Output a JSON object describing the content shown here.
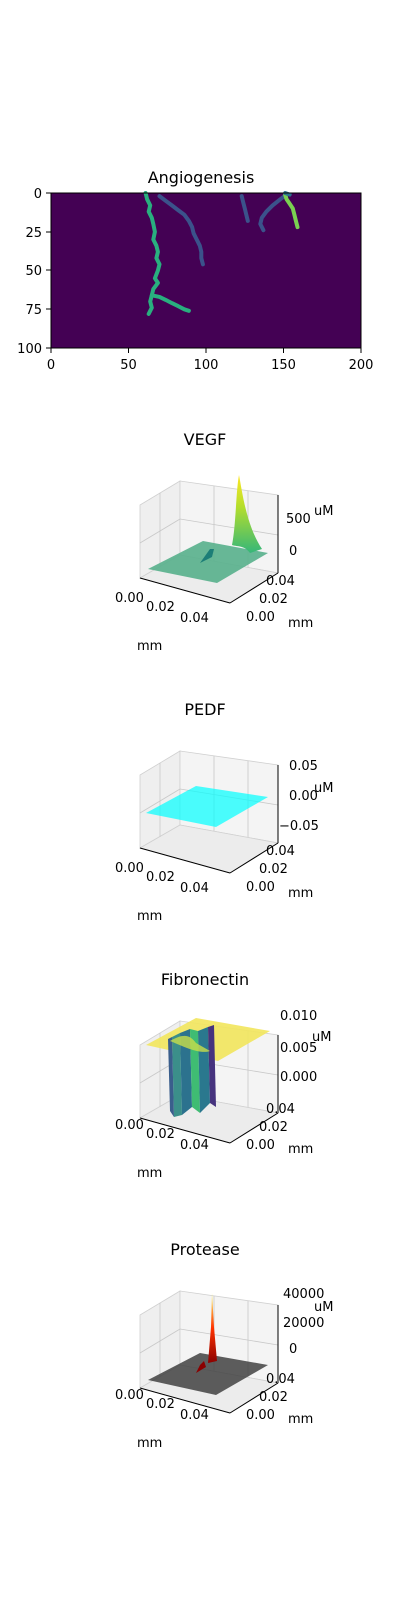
{
  "chart_data": [
    {
      "type": "heatmap",
      "title": "Angiogenesis",
      "xlim": [
        0,
        200
      ],
      "ylim": [
        100,
        0
      ],
      "x_ticks": [
        "0",
        "50",
        "100",
        "150",
        "200"
      ],
      "y_ticks": [
        "0",
        "25",
        "50",
        "75",
        "100"
      ],
      "background_color": "#440154",
      "branches": [
        {
          "color": "#29af7f",
          "points": [
            [
              61,
              0
            ],
            [
              62,
              4
            ],
            [
              64,
              8
            ],
            [
              63,
              12
            ],
            [
              65,
              16
            ],
            [
              66,
              20
            ],
            [
              67,
              25
            ],
            [
              66,
              30
            ],
            [
              68,
              34
            ],
            [
              69,
              38
            ],
            [
              68,
              42
            ],
            [
              70,
              46
            ],
            [
              69,
              50
            ],
            [
              67,
              55
            ],
            [
              69,
              58
            ],
            [
              66,
              62
            ],
            [
              65,
              66
            ],
            [
              64,
              70
            ],
            [
              65,
              74
            ],
            [
              63,
              78
            ]
          ]
        },
        {
          "color": "#29af7f",
          "points": [
            [
              65,
              66
            ],
            [
              70,
              67
            ],
            [
              74,
              69
            ],
            [
              78,
              71
            ],
            [
              82,
              73
            ],
            [
              86,
              75
            ],
            [
              89,
              76
            ]
          ]
        },
        {
          "color": "#3b528b",
          "points": [
            [
              70,
              2
            ],
            [
              74,
              5
            ],
            [
              78,
              8
            ],
            [
              82,
              11
            ],
            [
              86,
              14
            ],
            [
              89,
              18
            ],
            [
              91,
              22
            ],
            [
              92,
              26
            ],
            [
              94,
              30
            ],
            [
              96,
              34
            ],
            [
              97,
              38
            ],
            [
              97,
              42
            ],
            [
              98,
              46
            ]
          ]
        },
        {
          "color": "#3b528b",
          "points": [
            [
              123,
              2
            ],
            [
              124,
              6
            ],
            [
              125,
              10
            ],
            [
              126,
              14
            ],
            [
              127,
              18
            ]
          ]
        },
        {
          "color": "#3b528b",
          "points": [
            [
              152,
              1
            ],
            [
              148,
              4
            ],
            [
              143,
              8
            ],
            [
              139,
              12
            ],
            [
              136,
              16
            ],
            [
              135,
              20
            ],
            [
              137,
              24
            ]
          ]
        },
        {
          "color": "#7ad151",
          "points": [
            [
              151,
              1
            ],
            [
              152,
              4
            ],
            [
              154,
              7
            ],
            [
              156,
              10
            ],
            [
              157,
              14
            ],
            [
              158,
              18
            ],
            [
              159,
              22
            ]
          ]
        },
        {
          "color": "#2c728e",
          "points": [
            [
              151,
              0
            ],
            [
              154,
              1
            ]
          ]
        }
      ]
    },
    {
      "type": "surface",
      "title": "VEGF",
      "xlabel": "mm",
      "ylabel": "mm",
      "zlabel": "uM",
      "x_ticks": [
        "0.00",
        "0.02",
        "0.04"
      ],
      "y_ticks": [
        "0.00",
        "0.02",
        "0.04"
      ],
      "z_ticks": [
        "0",
        "500"
      ],
      "zlim": [
        0,
        800
      ],
      "surface": "peak",
      "peak_value": 800,
      "colormap": "viridis"
    },
    {
      "type": "surface",
      "title": "PEDF",
      "xlabel": "mm",
      "ylabel": "mm",
      "zlabel": "uM",
      "x_ticks": [
        "0.00",
        "0.02",
        "0.04"
      ],
      "y_ticks": [
        "0.00",
        "0.02",
        "0.04"
      ],
      "z_ticks": [
        "0.05",
        "0.00",
        "−0.05"
      ],
      "zlim": [
        -0.05,
        0.05
      ],
      "surface": "flat",
      "value": 0.0,
      "color": "#00ffff"
    },
    {
      "type": "surface",
      "title": "Fibronectin",
      "xlabel": "mm",
      "ylabel": "mm",
      "zlabel": "uM",
      "x_ticks": [
        "0.00",
        "0.02",
        "0.04"
      ],
      "y_ticks": [
        "0.00",
        "0.02",
        "0.04"
      ],
      "z_ticks": [
        "0.010",
        "0.005",
        "0.000"
      ],
      "zlim": [
        0,
        0.01
      ],
      "surface": "plateau-with-wells",
      "plateau_value": 0.01,
      "colormap": "viridis"
    },
    {
      "type": "surface",
      "title": "Protease",
      "xlabel": "mm",
      "ylabel": "mm",
      "zlabel": "uM",
      "x_ticks": [
        "0.00",
        "0.02",
        "0.04"
      ],
      "y_ticks": [
        "0.00",
        "0.02",
        "0.04"
      ],
      "z_ticks": [
        "40000",
        "20000",
        "0"
      ],
      "zlim": [
        0,
        45000
      ],
      "surface": "spike",
      "peak_value": 45000,
      "colormap": "hot"
    }
  ]
}
